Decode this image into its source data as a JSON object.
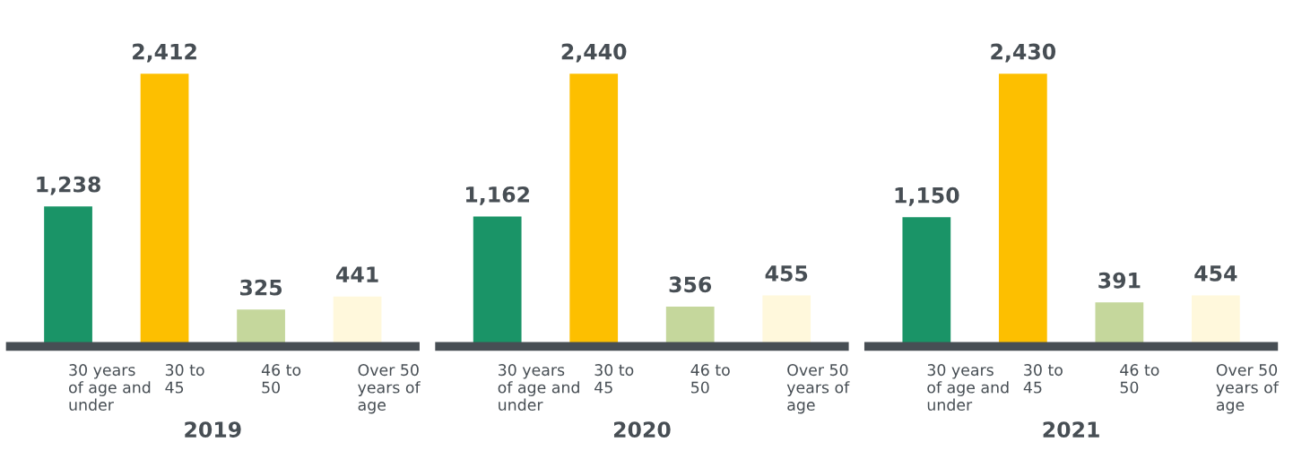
{
  "chart_data": [
    {
      "type": "bar",
      "xlabel": "2019",
      "categories": [
        "30 years\nof age and\nunder",
        "30 to\n45",
        "46 to\n50",
        "Over 50\nyears of\nage"
      ],
      "values": [
        1238,
        2412,
        325,
        441
      ],
      "colors": [
        "#1a9467",
        "#fdbf00",
        "#c5d79c",
        "#fff8dc"
      ],
      "value_labels": [
        "1,238",
        "2,412",
        "325",
        "441"
      ],
      "tick_labels": "x"
    },
    {
      "type": "bar",
      "xlabel": "2020",
      "categories": [
        "30 years\nof age and\nunder",
        "30 to\n45",
        "46 to\n50",
        "Over 50\nyears of\nage"
      ],
      "values": [
        1162,
        2440,
        356,
        455
      ],
      "colors": [
        "#1a9467",
        "#fdbf00",
        "#c5d79c",
        "#fff8dc"
      ],
      "value_labels": [
        "1,162",
        "2,440",
        "356",
        "455"
      ],
      "tick_labels": "x"
    },
    {
      "type": "bar",
      "xlabel": "2021",
      "categories": [
        "30 years\nof age and\nunder",
        "30 to\n45",
        "46 to\n50",
        "Over 50\nyears of\nage"
      ],
      "values": [
        1150,
        2430,
        391,
        454
      ],
      "colors": [
        "#1a9467",
        "#fdbf00",
        "#c5d79c",
        "#fff8dc"
      ],
      "value_labels": [
        "1,150",
        "2,430",
        "391",
        "454"
      ],
      "tick_labels": "x"
    }
  ]
}
